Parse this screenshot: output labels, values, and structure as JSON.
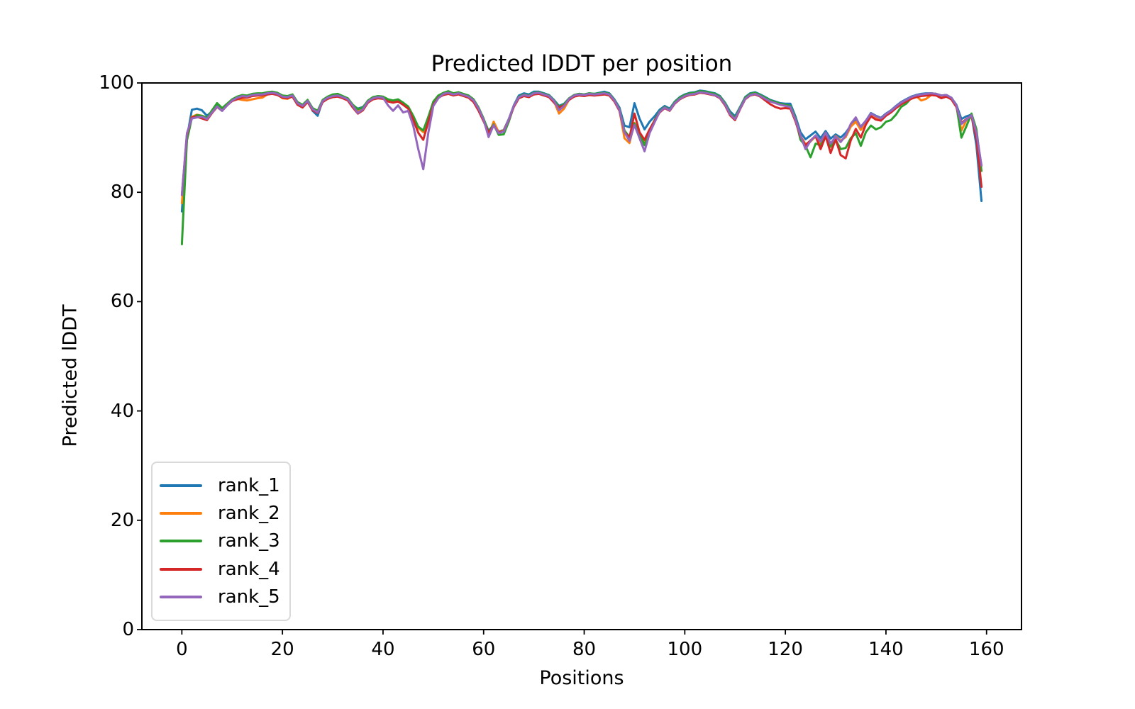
{
  "figure": {
    "background": "#ffffff",
    "spine_color": "#000000"
  },
  "chart_data": {
    "type": "line",
    "title": "Predicted lDDT per position",
    "xlabel": "Positions",
    "ylabel": "Predicted lDDT",
    "xlim": [
      -7.95,
      166.95
    ],
    "ylim": [
      0,
      100
    ],
    "xticks": [
      0,
      20,
      40,
      60,
      80,
      100,
      120,
      140,
      160
    ],
    "yticks": [
      0,
      20,
      40,
      60,
      80,
      100
    ],
    "grid": false,
    "legend_position": "lower left",
    "x_start": 0,
    "series": [
      {
        "name": "rank_1",
        "color": "#1f77b4",
        "values": [
          76.5,
          90.0,
          95.1,
          95.3,
          95.0,
          94.0,
          94.8,
          95.9,
          95.1,
          96.1,
          96.9,
          97.4,
          97.7,
          97.6,
          97.9,
          98.0,
          98.0,
          98.2,
          98.3,
          98.1,
          97.6,
          97.5,
          97.8,
          96.2,
          95.8,
          96.8,
          94.9,
          94.0,
          96.8,
          97.4,
          97.7,
          97.8,
          97.5,
          97.1,
          95.9,
          95.3,
          95.6,
          96.7,
          97.3,
          97.5,
          97.4,
          96.9,
          96.7,
          96.9,
          96.3,
          95.6,
          93.9,
          91.8,
          91.2,
          93.7,
          96.5,
          97.6,
          98.1,
          98.3,
          98.0,
          98.2,
          97.9,
          97.6,
          96.9,
          95.4,
          93.4,
          91.2,
          92.4,
          91.1,
          91.4,
          93.4,
          95.9,
          97.7,
          98.1,
          97.9,
          98.4,
          98.4,
          98.1,
          97.8,
          96.9,
          95.8,
          96.2,
          97.2,
          97.8,
          98.0,
          97.9,
          98.1,
          98.0,
          98.2,
          98.4,
          98.1,
          97.0,
          95.5,
          92.2,
          91.9,
          96.3,
          93.5,
          91.5,
          92.9,
          93.9,
          95.1,
          95.8,
          95.3,
          96.6,
          97.4,
          97.9,
          98.2,
          98.3,
          98.6,
          98.5,
          98.3,
          98.1,
          97.6,
          96.4,
          94.8,
          93.9,
          95.6,
          97.4,
          98.1,
          98.3,
          97.9,
          97.4,
          96.9,
          96.6,
          96.3,
          96.2,
          96.2,
          93.9,
          91.0,
          89.7,
          90.4,
          91.1,
          89.9,
          91.2,
          89.8,
          90.6,
          90.0,
          90.9,
          92.2,
          93.3,
          92.0,
          93.1,
          94.5,
          94.0,
          93.6,
          94.4,
          95.0,
          95.8,
          96.5,
          97.0,
          97.5,
          97.8,
          98.0,
          98.1,
          98.1,
          98.0,
          97.7,
          97.8,
          97.3,
          96.0,
          93.4,
          93.9,
          94.2,
          88.5,
          78.4
        ]
      },
      {
        "name": "rank_2",
        "color": "#ff7f0e",
        "values": [
          78.0,
          90.3,
          93.8,
          94.2,
          94.0,
          93.6,
          94.8,
          95.7,
          95.0,
          96.0,
          96.7,
          97.1,
          96.9,
          96.8,
          97.0,
          97.2,
          97.3,
          97.9,
          98.1,
          97.9,
          97.2,
          97.1,
          97.6,
          96.1,
          95.6,
          96.6,
          95.2,
          94.8,
          96.7,
          97.3,
          97.6,
          97.7,
          97.4,
          97.0,
          95.8,
          94.9,
          95.3,
          96.6,
          97.3,
          97.5,
          97.4,
          96.9,
          96.7,
          96.9,
          96.3,
          95.6,
          93.9,
          91.8,
          91.0,
          93.7,
          96.4,
          97.5,
          98.0,
          98.2,
          97.9,
          98.1,
          97.8,
          97.5,
          96.8,
          95.2,
          93.2,
          90.4,
          92.9,
          91.0,
          91.3,
          93.3,
          95.8,
          97.4,
          97.8,
          97.6,
          98.1,
          98.2,
          97.9,
          97.6,
          96.6,
          94.4,
          95.3,
          97.0,
          97.7,
          97.9,
          97.8,
          98.0,
          97.9,
          98.0,
          98.1,
          97.9,
          96.7,
          95.0,
          89.9,
          89.0,
          92.7,
          90.5,
          89.1,
          91.2,
          93.0,
          94.7,
          95.5,
          95.0,
          96.4,
          97.2,
          97.7,
          98.0,
          98.1,
          98.4,
          98.3,
          98.1,
          97.9,
          97.4,
          96.2,
          94.4,
          93.5,
          95.4,
          97.2,
          97.9,
          98.1,
          97.7,
          97.2,
          96.7,
          96.4,
          96.1,
          95.9,
          95.7,
          93.4,
          90.3,
          88.8,
          89.3,
          90.2,
          88.9,
          90.4,
          88.3,
          90.3,
          89.4,
          90.1,
          92.0,
          92.9,
          91.4,
          92.7,
          94.0,
          93.7,
          93.3,
          94.2,
          94.8,
          95.6,
          96.3,
          96.8,
          97.3,
          97.6,
          96.8,
          97.1,
          97.8,
          97.9,
          97.6,
          97.7,
          97.2,
          95.8,
          91.3,
          93.2,
          93.8,
          90.8,
          84.8
        ]
      },
      {
        "name": "rank_3",
        "color": "#2ca02c",
        "values": [
          70.5,
          89.5,
          93.6,
          94.1,
          94.0,
          93.6,
          95.0,
          96.3,
          95.4,
          96.2,
          97.0,
          97.5,
          97.8,
          97.7,
          98.0,
          98.1,
          98.1,
          98.3,
          98.4,
          98.2,
          97.7,
          97.6,
          97.9,
          96.5,
          96.0,
          96.9,
          95.4,
          94.9,
          96.9,
          97.5,
          97.9,
          98.0,
          97.6,
          97.2,
          96.0,
          95.2,
          95.5,
          96.8,
          97.4,
          97.6,
          97.5,
          97.0,
          96.8,
          97.0,
          96.4,
          95.7,
          94.0,
          92.0,
          91.3,
          93.8,
          96.6,
          97.7,
          98.2,
          98.5,
          98.1,
          98.3,
          98.0,
          97.7,
          97.0,
          95.5,
          93.5,
          91.0,
          92.4,
          90.5,
          90.6,
          92.9,
          95.7,
          97.5,
          97.9,
          97.7,
          98.2,
          98.3,
          98.0,
          97.7,
          96.8,
          95.6,
          96.1,
          97.2,
          97.8,
          98.0,
          97.9,
          98.1,
          98.0,
          98.1,
          98.2,
          98.0,
          96.9,
          95.2,
          91.3,
          90.1,
          92.6,
          90.7,
          88.6,
          91.4,
          93.2,
          94.8,
          95.6,
          95.1,
          96.5,
          97.3,
          97.8,
          98.1,
          98.2,
          98.5,
          98.4,
          98.2,
          98.0,
          97.5,
          96.3,
          94.5,
          93.6,
          95.5,
          97.3,
          98.0,
          98.2,
          97.8,
          97.3,
          96.8,
          96.5,
          96.2,
          96.0,
          95.8,
          93.5,
          89.6,
          88.5,
          86.4,
          88.9,
          88.6,
          90.2,
          88.4,
          89.6,
          87.9,
          88.1,
          89.9,
          90.8,
          88.5,
          91.0,
          92.2,
          91.5,
          91.9,
          92.9,
          93.2,
          94.2,
          95.6,
          96.2,
          97.2,
          97.6,
          97.8,
          98.0,
          98.1,
          98.0,
          97.7,
          97.8,
          97.3,
          95.9,
          90.0,
          92.1,
          94.4,
          91.5,
          83.9
        ]
      },
      {
        "name": "rank_4",
        "color": "#d62728",
        "values": [
          79.5,
          90.5,
          93.7,
          93.8,
          93.5,
          93.2,
          94.5,
          95.6,
          94.9,
          95.9,
          96.7,
          97.0,
          97.3,
          97.3,
          97.6,
          97.7,
          97.7,
          97.9,
          98.0,
          97.8,
          97.3,
          97.2,
          97.5,
          96.0,
          95.5,
          96.5,
          95.0,
          94.5,
          96.5,
          97.1,
          97.4,
          97.5,
          97.2,
          96.8,
          95.5,
          94.4,
          95.0,
          96.4,
          97.0,
          97.2,
          97.1,
          96.6,
          96.4,
          96.6,
          96.0,
          95.3,
          93.3,
          90.9,
          89.6,
          92.9,
          96.0,
          97.3,
          97.8,
          98.0,
          97.7,
          97.9,
          97.6,
          97.3,
          96.5,
          94.9,
          93.0,
          90.9,
          92.2,
          90.9,
          91.2,
          93.2,
          95.6,
          97.2,
          97.6,
          97.4,
          97.9,
          98.0,
          97.7,
          97.4,
          96.4,
          95.5,
          95.9,
          96.9,
          97.5,
          97.7,
          97.6,
          97.8,
          97.7,
          97.8,
          97.9,
          97.7,
          96.6,
          94.9,
          91.0,
          90.0,
          94.4,
          91.0,
          89.6,
          91.5,
          93.1,
          94.6,
          95.4,
          94.9,
          96.2,
          97.0,
          97.5,
          97.8,
          97.9,
          98.2,
          98.1,
          97.9,
          97.7,
          97.2,
          95.9,
          94.1,
          93.2,
          95.2,
          97.0,
          97.7,
          97.9,
          97.5,
          96.8,
          96.1,
          95.6,
          95.3,
          95.4,
          95.3,
          93.0,
          90.2,
          88.6,
          89.5,
          90.3,
          87.9,
          90.3,
          87.2,
          89.7,
          86.8,
          86.2,
          89.5,
          91.6,
          90.0,
          92.4,
          93.9,
          93.3,
          93.1,
          94.0,
          94.6,
          95.4,
          96.1,
          96.6,
          97.1,
          97.4,
          97.6,
          97.7,
          97.8,
          97.7,
          97.2,
          97.5,
          97.0,
          95.6,
          92.7,
          93.4,
          94.0,
          89.8,
          81.0
        ]
      },
      {
        "name": "rank_5",
        "color": "#9467bd",
        "values": [
          79.5,
          90.8,
          93.5,
          93.7,
          93.8,
          93.4,
          94.6,
          95.7,
          94.9,
          95.9,
          96.8,
          97.3,
          97.6,
          97.5,
          97.8,
          97.9,
          97.9,
          98.1,
          98.2,
          98.0,
          97.5,
          97.4,
          97.7,
          96.3,
          95.8,
          96.7,
          95.2,
          94.6,
          96.7,
          97.3,
          97.6,
          97.7,
          97.4,
          97.0,
          95.8,
          94.5,
          95.2,
          96.6,
          97.2,
          97.4,
          97.3,
          95.9,
          94.9,
          95.9,
          94.6,
          94.9,
          92.2,
          87.9,
          84.2,
          90.9,
          95.8,
          97.2,
          98.0,
          98.2,
          97.9,
          98.1,
          97.8,
          97.5,
          96.8,
          95.3,
          93.3,
          90.1,
          92.3,
          90.8,
          91.1,
          93.3,
          95.8,
          97.4,
          97.8,
          97.6,
          98.1,
          98.2,
          97.9,
          97.6,
          96.7,
          95.0,
          95.8,
          97.1,
          97.7,
          97.9,
          97.8,
          98.0,
          97.9,
          98.0,
          98.1,
          97.9,
          96.8,
          95.1,
          91.0,
          89.4,
          92.3,
          89.9,
          87.5,
          90.8,
          92.8,
          94.7,
          95.5,
          95.0,
          96.3,
          97.1,
          97.6,
          97.9,
          98.0,
          98.3,
          98.2,
          98.0,
          97.8,
          97.3,
          96.1,
          94.3,
          93.4,
          95.3,
          97.1,
          97.8,
          98.0,
          97.6,
          97.1,
          96.6,
          96.3,
          96.0,
          95.8,
          95.6,
          93.3,
          90.4,
          87.9,
          89.4,
          90.4,
          89.3,
          90.9,
          88.9,
          90.2,
          89.2,
          90.4,
          92.5,
          93.7,
          91.9,
          93.1,
          94.4,
          93.9,
          93.5,
          94.3,
          94.9,
          95.7,
          96.4,
          96.9,
          97.4,
          97.7,
          97.9,
          98.0,
          98.1,
          98.0,
          97.7,
          97.8,
          97.3,
          95.9,
          92.5,
          93.3,
          94.1,
          90.9,
          84.9
        ]
      }
    ]
  }
}
